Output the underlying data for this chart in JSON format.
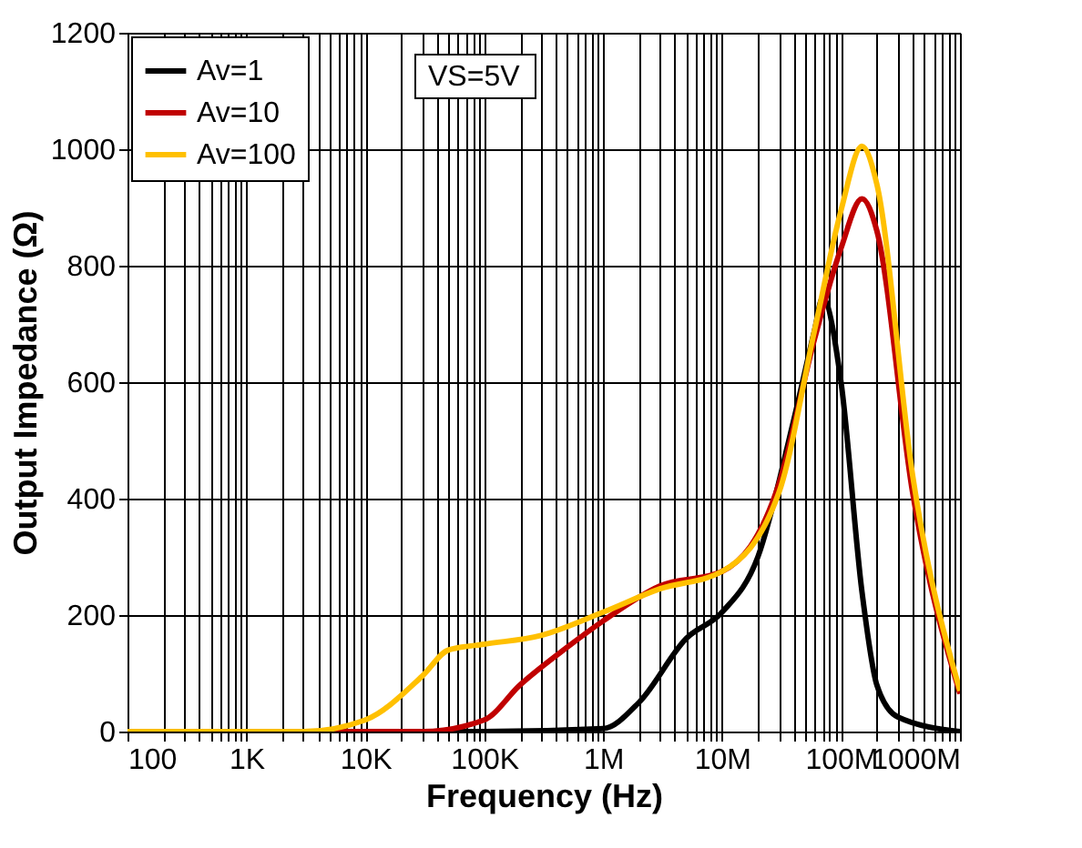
{
  "chart_data": {
    "type": "line",
    "xlabel": "Frequency (Hz)",
    "ylabel": "Output Impedance (Ω)",
    "annotations": [
      "VS=5V"
    ],
    "xlim": [
      100,
      1000000000
    ],
    "ylim": [
      0,
      1200
    ],
    "log": "x",
    "grid": true,
    "legend": "top left",
    "marker": "none",
    "line_style": "solid",
    "yticks": [
      0,
      200,
      400,
      600,
      800,
      1000,
      1200
    ],
    "xticks": [
      {
        "value": 100,
        "label": "100"
      },
      {
        "value": 200,
        "label": null
      },
      {
        "value": 300,
        "label": null
      },
      {
        "value": 400,
        "label": null
      },
      {
        "value": 500,
        "label": null
      },
      {
        "value": 600,
        "label": null
      },
      {
        "value": 700,
        "label": null
      },
      {
        "value": 800,
        "label": null
      },
      {
        "value": 900,
        "label": null
      },
      {
        "value": 1000,
        "label": "1K"
      },
      {
        "value": 2000,
        "label": null
      },
      {
        "value": 3000,
        "label": null
      },
      {
        "value": 4000,
        "label": null
      },
      {
        "value": 5000,
        "label": null
      },
      {
        "value": 6000,
        "label": null
      },
      {
        "value": 7000,
        "label": null
      },
      {
        "value": 8000,
        "label": null
      },
      {
        "value": 9000,
        "label": null
      },
      {
        "value": 10000,
        "label": "10K"
      },
      {
        "value": 20000,
        "label": null
      },
      {
        "value": 30000,
        "label": null
      },
      {
        "value": 40000,
        "label": null
      },
      {
        "value": 50000,
        "label": null
      },
      {
        "value": 60000,
        "label": null
      },
      {
        "value": 70000,
        "label": null
      },
      {
        "value": 80000,
        "label": null
      },
      {
        "value": 90000,
        "label": null
      },
      {
        "value": 100000,
        "label": "100K"
      },
      {
        "value": 200000,
        "label": null
      },
      {
        "value": 300000,
        "label": null
      },
      {
        "value": 400000,
        "label": null
      },
      {
        "value": 500000,
        "label": null
      },
      {
        "value": 600000,
        "label": null
      },
      {
        "value": 700000,
        "label": null
      },
      {
        "value": 800000,
        "label": null
      },
      {
        "value": 900000,
        "label": null
      },
      {
        "value": 1000000,
        "label": "1M"
      },
      {
        "value": 2000000,
        "label": null
      },
      {
        "value": 3000000,
        "label": null
      },
      {
        "value": 4000000,
        "label": null
      },
      {
        "value": 5000000,
        "label": null
      },
      {
        "value": 6000000,
        "label": null
      },
      {
        "value": 7000000,
        "label": null
      },
      {
        "value": 8000000,
        "label": null
      },
      {
        "value": 9000000,
        "label": null
      },
      {
        "value": 10000000,
        "label": "10M"
      },
      {
        "value": 20000000,
        "label": null
      },
      {
        "value": 30000000,
        "label": null
      },
      {
        "value": 40000000,
        "label": null
      },
      {
        "value": 50000000,
        "label": null
      },
      {
        "value": 60000000,
        "label": null
      },
      {
        "value": 70000000,
        "label": null
      },
      {
        "value": 80000000,
        "label": null
      },
      {
        "value": 90000000,
        "label": null
      },
      {
        "value": 100000000,
        "label": "100M"
      },
      {
        "value": 200000000,
        "label": null
      },
      {
        "value": 300000000,
        "label": null
      },
      {
        "value": 400000000,
        "label": null
      },
      {
        "value": 500000000,
        "label": null
      },
      {
        "value": 600000000,
        "label": null
      },
      {
        "value": 700000000,
        "label": null
      },
      {
        "value": 800000000,
        "label": null
      },
      {
        "value": 900000000,
        "label": null
      },
      {
        "value": 1000000000,
        "label": "1000M"
      }
    ],
    "series": [
      {
        "name": "Av=1",
        "color": "#000000",
        "x": [
          100,
          100000,
          1000000,
          2000000,
          5000000,
          10000000,
          20000000,
          40000000,
          60000000,
          70000000,
          100000000,
          150000000,
          200000000,
          300000000,
          1000000000
        ],
        "values": [
          0,
          0,
          5,
          50,
          160,
          205,
          300,
          535,
          690,
          745,
          600,
          240,
          80,
          25,
          0
        ]
      },
      {
        "name": "Av=10",
        "color": "#c00000",
        "x": [
          100,
          30000,
          100000,
          200000,
          500000,
          1000000,
          3000000,
          10000000,
          30000000,
          60000000,
          100000000,
          150000000,
          200000000,
          400000000,
          1000000000
        ],
        "values": [
          0,
          0,
          20,
          80,
          145,
          190,
          250,
          275,
          425,
          675,
          830,
          915,
          860,
          410,
          65
        ]
      },
      {
        "name": "Av=100",
        "color": "#ffc000",
        "x": [
          100,
          3000,
          10000,
          30000,
          50000,
          100000,
          300000,
          1000000,
          3000000,
          10000000,
          30000000,
          60000000,
          100000000,
          150000000,
          200000000,
          400000000,
          1000000000
        ],
        "values": [
          0,
          0,
          20,
          95,
          140,
          150,
          165,
          205,
          245,
          275,
          410,
          690,
          895,
          1005,
          940,
          440,
          70
        ]
      }
    ]
  }
}
